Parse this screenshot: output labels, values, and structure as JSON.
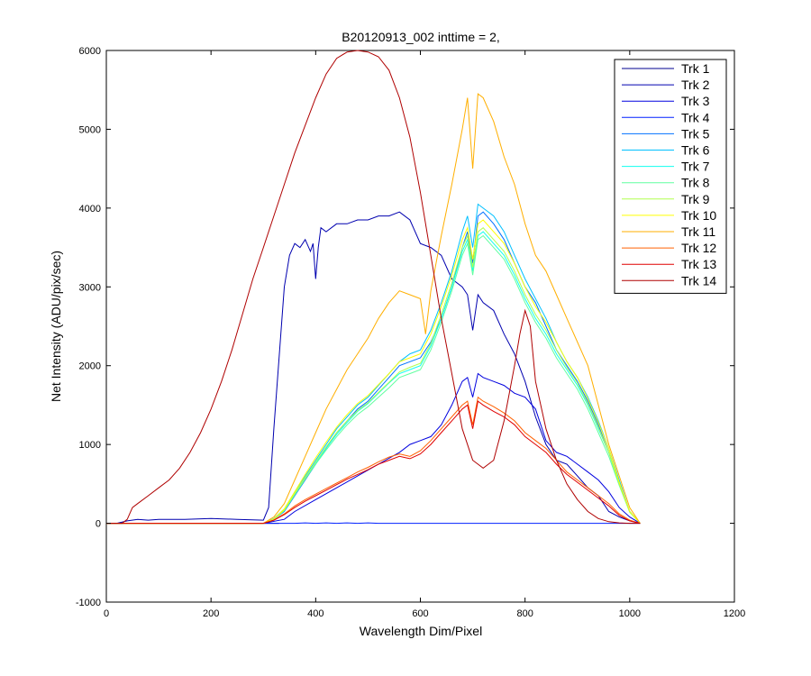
{
  "chart_data": {
    "type": "line",
    "title": "B20120913_002 inttime = 2,",
    "xlabel": "Wavelength Dim/Pixel",
    "ylabel": "Net Intensity (ADU/pix/sec)",
    "xlim": [
      0,
      1200
    ],
    "ylim": [
      -1000,
      6000
    ],
    "xticks": [
      0,
      200,
      400,
      600,
      800,
      1000,
      1200
    ],
    "yticks": [
      -1000,
      0,
      1000,
      2000,
      3000,
      4000,
      5000,
      6000
    ],
    "grid": false,
    "legend_position": "top-right",
    "series": [
      {
        "name": "Trk 1",
        "color": "#00008F",
        "x": [
          0,
          30,
          60,
          100,
          150,
          200,
          250,
          300,
          320,
          330
        ],
        "y": [
          0,
          0,
          0,
          0,
          0,
          0,
          0,
          0,
          0,
          0
        ]
      },
      {
        "name": "Trk 2",
        "color": "#0000AF",
        "x": [
          0,
          20,
          40,
          60,
          80,
          100,
          150,
          200,
          250,
          300,
          310,
          320,
          340,
          350,
          360,
          370,
          380,
          390,
          395,
          400,
          405,
          410,
          420,
          440,
          460,
          480,
          500,
          520,
          540,
          560,
          580,
          600,
          620,
          640,
          660,
          680,
          690,
          700,
          710,
          720,
          740,
          760,
          780,
          800,
          820,
          840,
          860,
          880,
          900,
          920,
          940,
          960,
          980,
          1000,
          1020
        ],
        "y": [
          0,
          0,
          30,
          50,
          40,
          50,
          50,
          60,
          50,
          40,
          200,
          1200,
          3000,
          3400,
          3550,
          3500,
          3600,
          3450,
          3550,
          3100,
          3500,
          3750,
          3700,
          3800,
          3800,
          3850,
          3850,
          3900,
          3900,
          3950,
          3850,
          3550,
          3500,
          3400,
          3100,
          3000,
          2900,
          2450,
          2900,
          2800,
          2700,
          2400,
          2150,
          1800,
          1350,
          1000,
          800,
          750,
          600,
          450,
          350,
          150,
          80,
          30,
          0
        ]
      },
      {
        "name": "Trk 3",
        "color": "#0000DF",
        "x": [
          0,
          300,
          340,
          360,
          400,
          440,
          480,
          520,
          560,
          580,
          600,
          620,
          640,
          660,
          680,
          690,
          700,
          710,
          720,
          740,
          760,
          780,
          800,
          820,
          840,
          860,
          880,
          900,
          920,
          940,
          960,
          980,
          1000,
          1020
        ],
        "y": [
          0,
          0,
          50,
          150,
          300,
          450,
          600,
          750,
          900,
          1000,
          1050,
          1100,
          1250,
          1500,
          1800,
          1850,
          1600,
          1900,
          1850,
          1800,
          1750,
          1650,
          1600,
          1450,
          1050,
          900,
          850,
          750,
          650,
          550,
          400,
          200,
          80,
          0
        ]
      },
      {
        "name": "Trk 4",
        "color": "#0020FF",
        "x": [
          0,
          360,
          380,
          400,
          420,
          440,
          460,
          480,
          500,
          520,
          540,
          560,
          600,
          800,
          1020
        ],
        "y": [
          0,
          0,
          5,
          0,
          5,
          0,
          5,
          0,
          5,
          0,
          0,
          0,
          0,
          0,
          0
        ]
      },
      {
        "name": "Trk 5",
        "color": "#0070FF",
        "x": [
          0,
          300,
          320,
          340,
          360,
          380,
          400,
          420,
          440,
          460,
          480,
          500,
          520,
          540,
          560,
          580,
          600,
          620,
          640,
          660,
          680,
          690,
          700,
          710,
          720,
          740,
          760,
          780,
          800,
          820,
          840,
          860,
          880,
          900,
          920,
          940,
          960,
          980,
          1000,
          1020
        ],
        "y": [
          0,
          0,
          50,
          150,
          350,
          550,
          750,
          950,
          1150,
          1300,
          1450,
          1550,
          1700,
          1850,
          2000,
          2050,
          2100,
          2300,
          2600,
          3000,
          3500,
          3700,
          3300,
          3900,
          3950,
          3800,
          3600,
          3300,
          3000,
          2800,
          2500,
          2200,
          2000,
          1800,
          1550,
          1250,
          900,
          500,
          150,
          0
        ]
      },
      {
        "name": "Trk 6",
        "color": "#00C0FF",
        "x": [
          0,
          300,
          320,
          340,
          360,
          380,
          400,
          420,
          440,
          460,
          480,
          500,
          520,
          540,
          560,
          580,
          600,
          620,
          640,
          660,
          680,
          690,
          700,
          710,
          720,
          740,
          760,
          780,
          800,
          820,
          840,
          860,
          880,
          900,
          920,
          940,
          960,
          980,
          1000,
          1020
        ],
        "y": [
          0,
          0,
          60,
          180,
          400,
          600,
          800,
          1000,
          1200,
          1350,
          1500,
          1600,
          1750,
          1900,
          2050,
          2150,
          2200,
          2450,
          2800,
          3200,
          3700,
          3900,
          3500,
          4050,
          4000,
          3900,
          3700,
          3400,
          3100,
          2850,
          2600,
          2300,
          2050,
          1850,
          1600,
          1300,
          950,
          550,
          150,
          0
        ]
      },
      {
        "name": "Trk 7",
        "color": "#10FFEF",
        "x": [
          0,
          300,
          320,
          340,
          360,
          380,
          400,
          420,
          440,
          460,
          480,
          500,
          520,
          540,
          560,
          580,
          600,
          620,
          640,
          660,
          680,
          690,
          700,
          710,
          720,
          740,
          760,
          780,
          800,
          820,
          840,
          860,
          880,
          900,
          920,
          940,
          960,
          980,
          1000,
          1020
        ],
        "y": [
          0,
          0,
          50,
          160,
          370,
          570,
          760,
          950,
          1130,
          1280,
          1420,
          1520,
          1650,
          1780,
          1900,
          1950,
          2000,
          2250,
          2600,
          3000,
          3450,
          3600,
          3200,
          3650,
          3700,
          3550,
          3400,
          3150,
          2850,
          2600,
          2400,
          2150,
          1950,
          1750,
          1500,
          1200,
          900,
          500,
          150,
          0
        ]
      },
      {
        "name": "Trk 8",
        "color": "#60FF9F",
        "x": [
          0,
          300,
          320,
          340,
          360,
          380,
          400,
          420,
          440,
          460,
          480,
          500,
          520,
          540,
          560,
          580,
          600,
          620,
          640,
          660,
          680,
          690,
          700,
          710,
          720,
          740,
          760,
          780,
          800,
          820,
          840,
          860,
          880,
          900,
          920,
          940,
          960,
          980,
          1000,
          1020
        ],
        "y": [
          0,
          0,
          50,
          160,
          360,
          560,
          750,
          930,
          1100,
          1250,
          1380,
          1480,
          1600,
          1720,
          1850,
          1900,
          1950,
          2200,
          2550,
          2950,
          3400,
          3550,
          3150,
          3600,
          3650,
          3500,
          3350,
          3100,
          2800,
          2550,
          2350,
          2100,
          1900,
          1700,
          1450,
          1150,
          850,
          480,
          140,
          0
        ]
      },
      {
        "name": "Trk 9",
        "color": "#B0FF4F",
        "x": [
          0,
          300,
          320,
          340,
          360,
          380,
          400,
          420,
          440,
          460,
          480,
          500,
          520,
          540,
          560,
          580,
          600,
          620,
          640,
          660,
          680,
          690,
          700,
          710,
          720,
          740,
          760,
          780,
          800,
          820,
          840,
          860,
          880,
          900,
          920,
          940,
          960,
          980,
          1000,
          1020
        ],
        "y": [
          0,
          0,
          50,
          170,
          380,
          580,
          780,
          970,
          1150,
          1300,
          1430,
          1530,
          1660,
          1790,
          1920,
          1980,
          2030,
          2280,
          2650,
          3050,
          3500,
          3650,
          3250,
          3700,
          3750,
          3600,
          3450,
          3200,
          2900,
          2650,
          2450,
          2200,
          1980,
          1780,
          1520,
          1220,
          900,
          500,
          150,
          0
        ]
      },
      {
        "name": "Trk 10",
        "color": "#FFFF00",
        "x": [
          0,
          300,
          320,
          340,
          360,
          380,
          400,
          420,
          440,
          460,
          480,
          500,
          520,
          540,
          560,
          580,
          600,
          620,
          640,
          660,
          680,
          690,
          700,
          710,
          720,
          740,
          760,
          780,
          800,
          820,
          840,
          860,
          880,
          900,
          920,
          940,
          960,
          980,
          1000,
          1020
        ],
        "y": [
          0,
          0,
          55,
          180,
          400,
          620,
          830,
          1030,
          1220,
          1380,
          1520,
          1620,
          1760,
          1900,
          2050,
          2100,
          2150,
          2400,
          2750,
          3150,
          3600,
          3750,
          3350,
          3800,
          3850,
          3700,
          3550,
          3300,
          3000,
          2750,
          2550,
          2300,
          2050,
          1850,
          1580,
          1280,
          950,
          520,
          150,
          0
        ]
      },
      {
        "name": "Trk 11",
        "color": "#FFAF00",
        "x": [
          0,
          300,
          320,
          340,
          360,
          380,
          400,
          420,
          440,
          460,
          480,
          500,
          520,
          540,
          560,
          580,
          600,
          610,
          620,
          640,
          660,
          680,
          690,
          700,
          710,
          720,
          740,
          760,
          780,
          800,
          820,
          840,
          860,
          880,
          900,
          920,
          940,
          960,
          980,
          1000,
          1020
        ],
        "y": [
          0,
          0,
          80,
          250,
          550,
          850,
          1150,
          1450,
          1700,
          1950,
          2150,
          2350,
          2600,
          2800,
          2950,
          2900,
          2850,
          2400,
          2950,
          3650,
          4300,
          5000,
          5400,
          4500,
          5450,
          5400,
          5100,
          4650,
          4300,
          3800,
          3400,
          3200,
          2900,
          2600,
          2300,
          2000,
          1500,
          1000,
          600,
          200,
          0
        ]
      },
      {
        "name": "Trk 12",
        "color": "#FF6000",
        "x": [
          0,
          300,
          320,
          340,
          360,
          380,
          400,
          420,
          440,
          460,
          480,
          500,
          520,
          540,
          560,
          580,
          600,
          620,
          640,
          660,
          680,
          690,
          700,
          710,
          720,
          740,
          760,
          780,
          800,
          820,
          840,
          860,
          880,
          900,
          920,
          940,
          960,
          980,
          1000,
          1020
        ],
        "y": [
          0,
          0,
          40,
          120,
          220,
          300,
          370,
          440,
          510,
          580,
          650,
          710,
          780,
          840,
          880,
          850,
          920,
          1050,
          1200,
          1350,
          1500,
          1550,
          1250,
          1600,
          1550,
          1480,
          1400,
          1300,
          1150,
          1050,
          950,
          800,
          650,
          550,
          450,
          350,
          250,
          120,
          40,
          0
        ]
      },
      {
        "name": "Trk 13",
        "color": "#DF0000",
        "x": [
          0,
          300,
          320,
          340,
          360,
          380,
          400,
          420,
          440,
          460,
          480,
          500,
          520,
          540,
          560,
          580,
          600,
          620,
          640,
          660,
          680,
          690,
          700,
          710,
          720,
          740,
          760,
          780,
          800,
          820,
          840,
          860,
          880,
          900,
          920,
          940,
          960,
          980,
          1000,
          1020
        ],
        "y": [
          0,
          0,
          40,
          110,
          200,
          280,
          350,
          420,
          490,
          560,
          620,
          680,
          750,
          800,
          850,
          820,
          880,
          1000,
          1150,
          1300,
          1450,
          1500,
          1200,
          1550,
          1500,
          1420,
          1350,
          1250,
          1100,
          1000,
          900,
          750,
          620,
          520,
          420,
          320,
          220,
          100,
          30,
          0
        ]
      },
      {
        "name": "Trk 14",
        "color": "#AF0000",
        "x": [
          0,
          30,
          40,
          50,
          60,
          80,
          100,
          120,
          140,
          160,
          180,
          200,
          220,
          240,
          260,
          280,
          300,
          320,
          340,
          360,
          380,
          400,
          420,
          440,
          460,
          480,
          500,
          520,
          540,
          560,
          580,
          600,
          620,
          640,
          660,
          680,
          700,
          720,
          740,
          760,
          780,
          790,
          800,
          810,
          820,
          840,
          860,
          880,
          900,
          920,
          940,
          960,
          980,
          1000,
          1020
        ],
        "y": [
          0,
          0,
          50,
          200,
          250,
          350,
          450,
          550,
          700,
          900,
          1150,
          1450,
          1800,
          2200,
          2650,
          3100,
          3500,
          3900,
          4300,
          4700,
          5050,
          5400,
          5700,
          5900,
          5980,
          6000,
          5980,
          5920,
          5750,
          5400,
          4900,
          4200,
          3400,
          2600,
          1900,
          1200,
          800,
          700,
          800,
          1300,
          2000,
          2400,
          2700,
          2500,
          1800,
          1200,
          800,
          500,
          300,
          150,
          60,
          20,
          5,
          0,
          0
        ]
      }
    ]
  }
}
